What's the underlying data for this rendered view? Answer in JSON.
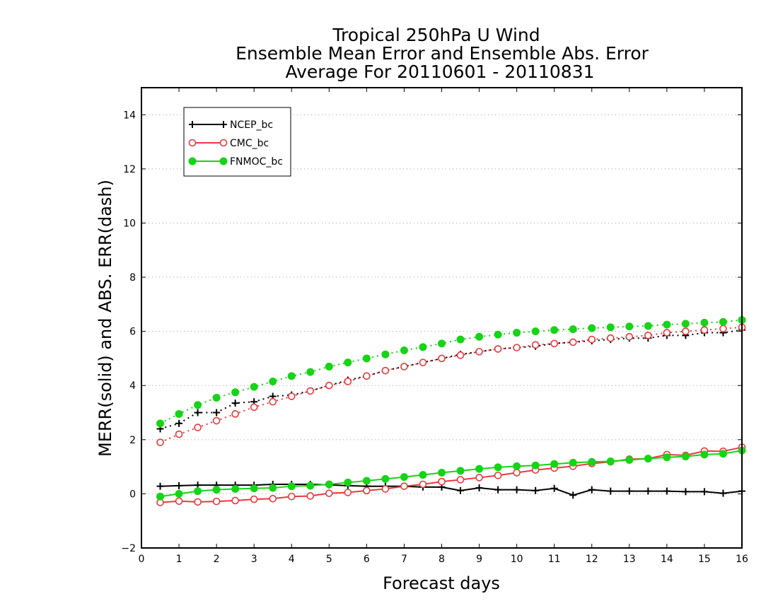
{
  "colors": {
    "NCEP_bc": "#000000",
    "CMC_bc": "#e8393f",
    "FNMOC_bc": "#16d416",
    "grid": "#a0a0a0"
  },
  "chart_data": {
    "type": "line",
    "title_lines": [
      "Tropical 250hPa U Wind",
      "Ensemble Mean Error and Ensemble Abs. Error",
      "Average For 20110601 - 20110831"
    ],
    "xlabel": "Forecast days",
    "ylabel": "MERR(solid) and ABS. ERR(dash)",
    "xlim": [
      0,
      16
    ],
    "ylim": [
      -2,
      15
    ],
    "xticks": [
      "0",
      "1",
      "2",
      "3",
      "4",
      "5",
      "6",
      "7",
      "8",
      "9",
      "10",
      "11",
      "12",
      "13",
      "14",
      "15",
      "16"
    ],
    "yticks": [
      "−2",
      "0",
      "2",
      "4",
      "6",
      "8",
      "10",
      "12",
      "14"
    ],
    "grid": "horizontal dotted",
    "legend_position": "top-left",
    "x": [
      0.5,
      1,
      1.5,
      2,
      2.5,
      3,
      3.5,
      4,
      4.5,
      5,
      5.5,
      6,
      6.5,
      7,
      7.5,
      8,
      8.5,
      9,
      9.5,
      10,
      10.5,
      11,
      11.5,
      12,
      12.5,
      13,
      13.5,
      14,
      14.5,
      15,
      15.5,
      16
    ],
    "series": [
      {
        "name": "NCEP_bc",
        "marker": "plus",
        "merr": [
          0.28,
          0.3,
          0.32,
          0.32,
          0.32,
          0.32,
          0.35,
          0.35,
          0.35,
          0.33,
          0.3,
          0.28,
          0.28,
          0.28,
          0.25,
          0.25,
          0.12,
          0.22,
          0.15,
          0.15,
          0.12,
          0.2,
          -0.05,
          0.15,
          0.1,
          0.1,
          0.1,
          0.1,
          0.08,
          0.08,
          0.02,
          0.1
        ],
        "abs_err": [
          2.4,
          2.6,
          3.0,
          3.0,
          3.35,
          3.4,
          3.6,
          3.65,
          3.8,
          4.0,
          4.2,
          4.35,
          4.55,
          4.7,
          4.85,
          5.0,
          5.15,
          5.25,
          5.35,
          5.4,
          5.45,
          5.55,
          5.6,
          5.65,
          5.7,
          5.75,
          5.75,
          5.85,
          5.85,
          5.95,
          5.95,
          6.05
        ]
      },
      {
        "name": "CMC_bc",
        "marker": "open-circle",
        "merr": [
          -0.32,
          -0.27,
          -0.3,
          -0.28,
          -0.25,
          -0.2,
          -0.18,
          -0.1,
          -0.08,
          0.02,
          0.05,
          0.12,
          0.18,
          0.28,
          0.35,
          0.45,
          0.52,
          0.6,
          0.68,
          0.78,
          0.88,
          0.95,
          1.02,
          1.12,
          1.18,
          1.28,
          1.3,
          1.45,
          1.42,
          1.58,
          1.57,
          1.72
        ],
        "abs_err": [
          1.9,
          2.2,
          2.45,
          2.7,
          2.95,
          3.2,
          3.4,
          3.6,
          3.8,
          4.0,
          4.15,
          4.35,
          4.55,
          4.7,
          4.85,
          5.0,
          5.12,
          5.25,
          5.35,
          5.4,
          5.5,
          5.55,
          5.6,
          5.7,
          5.75,
          5.8,
          5.85,
          5.95,
          6.0,
          6.05,
          6.1,
          6.15
        ]
      },
      {
        "name": "FNMOC_bc",
        "marker": "filled-circle",
        "merr": [
          -0.1,
          0.0,
          0.1,
          0.15,
          0.18,
          0.2,
          0.22,
          0.28,
          0.3,
          0.35,
          0.42,
          0.48,
          0.55,
          0.62,
          0.7,
          0.78,
          0.85,
          0.92,
          0.98,
          1.02,
          1.05,
          1.1,
          1.15,
          1.18,
          1.2,
          1.25,
          1.3,
          1.35,
          1.38,
          1.45,
          1.48,
          1.6
        ],
        "abs_err": [
          2.6,
          2.95,
          3.28,
          3.55,
          3.75,
          3.95,
          4.15,
          4.35,
          4.5,
          4.7,
          4.85,
          5.0,
          5.15,
          5.3,
          5.42,
          5.55,
          5.7,
          5.8,
          5.88,
          5.95,
          6.0,
          6.05,
          6.08,
          6.12,
          6.15,
          6.18,
          6.2,
          6.25,
          6.28,
          6.32,
          6.35,
          6.42
        ]
      }
    ]
  }
}
